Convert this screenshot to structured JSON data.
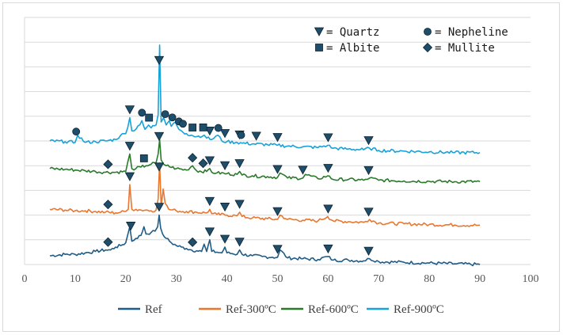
{
  "chart_data": {
    "type": "line",
    "title": "",
    "xlabel": "",
    "ylabel": "",
    "xlim": [
      0,
      100
    ],
    "x_ticks": [
      "0",
      "10",
      "20",
      "30",
      "40",
      "50",
      "60",
      "70",
      "80",
      "90",
      "100"
    ],
    "y_ticks_labeled": false,
    "grid": "horizontal",
    "legend_position": "bottom",
    "series": [
      {
        "name": "Ref",
        "color": "#1f5c87",
        "x": [
          5,
          8,
          10,
          12,
          14,
          16,
          17,
          18,
          19,
          20,
          20.8,
          21.2,
          22,
          23,
          23.6,
          24,
          25,
          25.8,
          26.3,
          26.6,
          26.9,
          27.3,
          28,
          29,
          30,
          31,
          32,
          33,
          34,
          35,
          35.5,
          36,
          36.6,
          37,
          38,
          39,
          39.6,
          40,
          41,
          42,
          42.5,
          43,
          45,
          47,
          49,
          50,
          50.5,
          52,
          55,
          58,
          59.9,
          61,
          64,
          67,
          68.2,
          70,
          75,
          80,
          85,
          90
        ],
        "y": [
          0.6,
          0.7,
          0.7,
          0.8,
          0.9,
          1.0,
          1.0,
          1.2,
          1.3,
          1.5,
          2.6,
          1.6,
          1.8,
          2.0,
          2.6,
          2.1,
          2.2,
          2.3,
          2.6,
          3.4,
          2.5,
          2.1,
          1.8,
          1.5,
          1.3,
          1.2,
          1.1,
          1.0,
          0.95,
          0.9,
          1.4,
          0.9,
          1.7,
          0.9,
          0.85,
          0.8,
          1.2,
          0.8,
          0.75,
          0.7,
          1.0,
          0.7,
          0.6,
          0.55,
          0.5,
          0.5,
          1.0,
          0.45,
          0.4,
          0.35,
          0.55,
          0.3,
          0.3,
          0.25,
          0.4,
          0.2,
          0.15,
          0.1,
          0.05,
          0.0
        ]
      },
      {
        "name": "Ref-300ºC",
        "color": "#e9772e",
        "x": [
          5,
          8,
          10,
          12,
          14,
          16,
          18,
          19,
          20,
          20.5,
          20.8,
          21.2,
          22,
          23,
          24,
          25,
          26,
          26.4,
          26.7,
          27,
          27.4,
          27.8,
          28.5,
          30,
          32,
          34,
          36,
          36.6,
          37,
          38,
          40,
          42,
          42.5,
          43,
          45,
          48,
          50,
          50.5,
          52,
          55,
          58,
          59.9,
          61,
          64,
          67,
          68.2,
          70,
          75,
          80,
          85,
          90
        ],
        "y": [
          3.8,
          3.75,
          3.7,
          3.7,
          3.65,
          3.6,
          3.55,
          3.6,
          3.65,
          3.8,
          5.5,
          3.8,
          3.8,
          3.75,
          3.75,
          3.7,
          3.75,
          4.5,
          7.0,
          4.0,
          5.2,
          4.2,
          3.8,
          3.7,
          3.65,
          3.6,
          3.55,
          3.8,
          3.5,
          3.45,
          3.4,
          3.35,
          3.6,
          3.3,
          3.2,
          3.15,
          3.1,
          3.4,
          3.1,
          3.05,
          3.0,
          3.3,
          3.0,
          2.95,
          2.9,
          3.1,
          2.85,
          2.8,
          2.75,
          2.72,
          2.7
        ]
      },
      {
        "name": "Ref-600ºC",
        "color": "#2b7a2b",
        "x": [
          5,
          8,
          10,
          12,
          14,
          16,
          18,
          20,
          20.8,
          21.2,
          22,
          23,
          24,
          25,
          26,
          26.4,
          26.7,
          27,
          27.5,
          28,
          30,
          32,
          33.2,
          34,
          36,
          36.6,
          37,
          38,
          40,
          42,
          42.5,
          43,
          45,
          48,
          50,
          50.5,
          52,
          55,
          55.5,
          58,
          59.9,
          61,
          64,
          67,
          68.2,
          70,
          75,
          80,
          85,
          90
        ],
        "y": [
          6.6,
          6.55,
          6.5,
          6.45,
          6.4,
          6.35,
          6.35,
          6.4,
          7.6,
          6.6,
          6.6,
          6.7,
          6.8,
          6.9,
          7.0,
          7.6,
          8.6,
          7.2,
          6.9,
          6.8,
          6.6,
          6.5,
          6.8,
          6.45,
          6.4,
          6.6,
          6.35,
          6.3,
          6.25,
          6.2,
          6.4,
          6.15,
          6.1,
          6.05,
          6.0,
          6.3,
          5.95,
          5.95,
          6.2,
          5.9,
          6.1,
          5.85,
          5.85,
          5.8,
          5.95,
          5.8,
          5.75,
          5.72,
          5.7,
          5.7
        ]
      },
      {
        "name": "Ref-900ºC",
        "color": "#17a2d8",
        "x": [
          5,
          8,
          10,
          10.5,
          12,
          14,
          16,
          18,
          19,
          20,
          20.8,
          21.2,
          22,
          23.2,
          23.8,
          24.5,
          25,
          26,
          26.4,
          26.7,
          27,
          27.5,
          28,
          28.6,
          29,
          29.8,
          30.5,
          31,
          32,
          33,
          34,
          35.5,
          36,
          37,
          38.2,
          39,
          40,
          42,
          43,
          45,
          48,
          50,
          52,
          55,
          58,
          59.9,
          61,
          64,
          67,
          68.2,
          70,
          75,
          80,
          85,
          90
        ],
        "y": [
          8.5,
          8.45,
          8.4,
          8.9,
          8.4,
          8.45,
          8.5,
          8.6,
          8.9,
          9.0,
          10.1,
          9.2,
          9.3,
          9.9,
          9.3,
          9.6,
          9.4,
          9.6,
          10.3,
          15.1,
          9.8,
          10.1,
          9.6,
          9.9,
          9.5,
          9.8,
          9.3,
          9.2,
          9.0,
          8.9,
          8.8,
          8.9,
          8.7,
          8.6,
          8.9,
          8.5,
          8.45,
          8.4,
          8.35,
          8.3,
          8.25,
          8.2,
          8.15,
          8.1,
          8.05,
          8.2,
          8.0,
          7.95,
          7.9,
          8.0,
          7.85,
          7.8,
          7.75,
          7.7,
          7.7
        ]
      }
    ],
    "phase_markers": [
      {
        "phase": "quartz",
        "series": "Ref",
        "x": [
          21,
          26.6,
          36.6,
          39.6,
          42.5,
          50,
          60,
          68
        ]
      },
      {
        "phase": "mullite",
        "series": "Ref",
        "x": [
          16.5,
          33.2
        ]
      },
      {
        "phase": "quartz",
        "series": "Ref-300ºC",
        "x": [
          20.8,
          26.6,
          36.6,
          39.6,
          42.5,
          50,
          60,
          68
        ]
      },
      {
        "phase": "mullite",
        "series": "Ref-300ºC",
        "x": [
          16.5
        ]
      },
      {
        "phase": "quartz",
        "series": "Ref-600ºC",
        "x": [
          20.8,
          26.6,
          36.6,
          39.6,
          42.5,
          50,
          55,
          60,
          68
        ]
      },
      {
        "phase": "mullite",
        "series": "Ref-600ºC",
        "x": [
          16.5,
          33.2,
          35.3
        ]
      },
      {
        "phase": "albite",
        "series": "Ref-600ºC",
        "x": [
          23.6
        ]
      },
      {
        "phase": "quartz",
        "series": "Ref-900ºC",
        "x": [
          20.8,
          26.6,
          36.6,
          39.6,
          42.5,
          45.8,
          50,
          60,
          68
        ]
      },
      {
        "phase": "nepheline",
        "series": "Ref-900ºC",
        "x": [
          10.2,
          23.2,
          27.8,
          29.2,
          30.5,
          31.3,
          38.3,
          42.8
        ]
      },
      {
        "phase": "albite",
        "series": "Ref-900ºC",
        "x": [
          24.6,
          33.2,
          35.3
        ]
      }
    ],
    "marker_legend": [
      {
        "phase": "quartz",
        "label": "= Quartz"
      },
      {
        "phase": "nepheline",
        "label": "= Nepheline"
      },
      {
        "phase": "albite",
        "label": "= Albite"
      },
      {
        "phase": "mullite",
        "label": "= Mullite"
      }
    ],
    "marker_color": "#1f4e6b"
  }
}
